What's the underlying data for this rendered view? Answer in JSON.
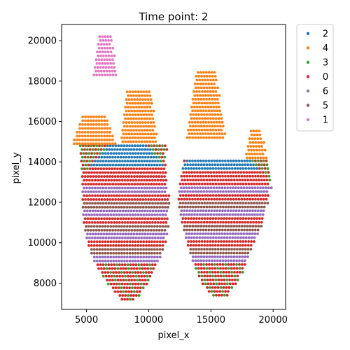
{
  "chart_data": {
    "type": "scatter",
    "title": "Time point: 2",
    "xlabel": "pixel_x",
    "ylabel": "pixel_y",
    "xlim": [
      3000,
      21000
    ],
    "ylim": [
      6700,
      20800
    ],
    "xticks": [
      5000,
      10000,
      15000,
      20000
    ],
    "yticks": [
      8000,
      10000,
      12000,
      14000,
      16000,
      18000,
      20000
    ],
    "xtick_labels": [
      "5000",
      "10000",
      "15000",
      "20000"
    ],
    "ytick_labels": [
      "8000",
      "10000",
      "12000",
      "14000",
      "16000",
      "18000",
      "20000"
    ],
    "grid": false,
    "legend_position": "outside-top-right",
    "grid_spacing": {
      "dx": 220,
      "dy": 190
    },
    "series": [
      {
        "name": "2",
        "color": "#1f77b4"
      },
      {
        "name": "4",
        "color": "#ff7f0e"
      },
      {
        "name": "3",
        "color": "#2ca02c"
      },
      {
        "name": "0",
        "color": "#d62728"
      },
      {
        "name": "6",
        "color": "#9467bd"
      },
      {
        "name": "5",
        "color": "#8c564b"
      },
      {
        "name": "1",
        "color": "#e377c2"
      }
    ]
  }
}
